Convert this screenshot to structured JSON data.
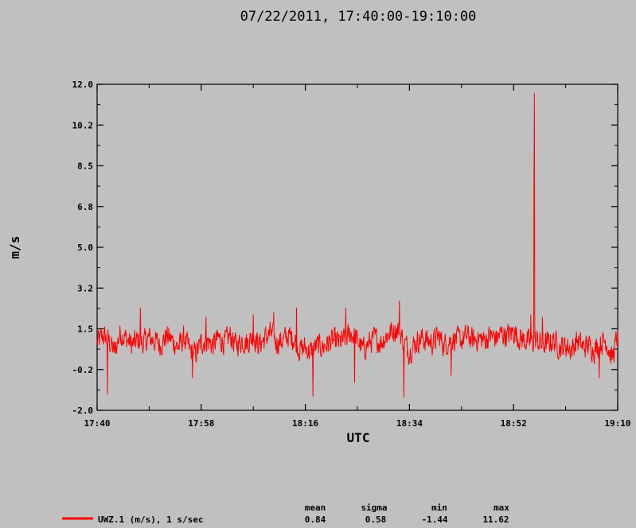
{
  "chart_data": {
    "type": "line",
    "title": "07/22/2011, 17:40:00-19:10:00",
    "xlabel": "UTC",
    "ylabel": "m/s",
    "x_ticks": [
      "17:40",
      "17:58",
      "18:16",
      "18:34",
      "18:52",
      "19:10"
    ],
    "x_range_minutes": [
      0,
      90
    ],
    "y_ticks": [
      "12.0",
      "10.2",
      "8.5",
      "6.8",
      "5.0",
      "3.2",
      "1.5",
      "-0.2",
      "-2.0"
    ],
    "ylim": [
      -2.0,
      12.0
    ],
    "grid": false,
    "series": [
      {
        "name": "UWZ.1 (m/s), 1 s/sec",
        "color": "#ff0000",
        "mean": 0.84,
        "sigma": 0.58,
        "min": -1.44,
        "max": 11.62,
        "anchors": [
          [
            0,
            0.9
          ],
          [
            1,
            1.2
          ],
          [
            2,
            1.0
          ],
          [
            3,
            0.5
          ],
          [
            4,
            1.3
          ],
          [
            5,
            1.1
          ],
          [
            6,
            0.8
          ],
          [
            7,
            1.0
          ],
          [
            8,
            0.9
          ],
          [
            9,
            1.1
          ],
          [
            10,
            1.0
          ],
          [
            11,
            0.8
          ],
          [
            12,
            1.2
          ],
          [
            13,
            1.0
          ],
          [
            14,
            0.7
          ],
          [
            15,
            1.1
          ],
          [
            16,
            0.6
          ],
          [
            17,
            0.4
          ],
          [
            18,
            0.9
          ],
          [
            19,
            1.0
          ],
          [
            20,
            0.8
          ],
          [
            21,
            1.1
          ],
          [
            22,
            0.9
          ],
          [
            23,
            1.2
          ],
          [
            24,
            0.8
          ],
          [
            25,
            1.0
          ],
          [
            26,
            0.9
          ],
          [
            27,
            1.2
          ],
          [
            28,
            0.8
          ],
          [
            29,
            1.1
          ],
          [
            30,
            1.3
          ],
          [
            31,
            0.9
          ],
          [
            32,
            1.0
          ],
          [
            33,
            1.2
          ],
          [
            34,
            1.1
          ],
          [
            35,
            0.6
          ],
          [
            36,
            0.7
          ],
          [
            37,
            0.5
          ],
          [
            38,
            0.8
          ],
          [
            39,
            0.7
          ],
          [
            40,
            0.9
          ],
          [
            41,
            1.0
          ],
          [
            42,
            0.9
          ],
          [
            43,
            1.1
          ],
          [
            44,
            1.3
          ],
          [
            45,
            1.0
          ],
          [
            46,
            0.6
          ],
          [
            47,
            0.9
          ],
          [
            48,
            1.1
          ],
          [
            49,
            0.9
          ],
          [
            50,
            1.2
          ],
          [
            51,
            1.4
          ],
          [
            52,
            1.5
          ],
          [
            53,
            1.0
          ],
          [
            54,
            0.5
          ],
          [
            55,
            0.9
          ],
          [
            56,
            1.1
          ],
          [
            57,
            1.0
          ],
          [
            58,
            0.9
          ],
          [
            59,
            1.2
          ],
          [
            60,
            0.8
          ],
          [
            61,
            1.0
          ],
          [
            62,
            1.1
          ],
          [
            63,
            1.0
          ],
          [
            64,
            1.2
          ],
          [
            65,
            1.0
          ],
          [
            66,
            1.1
          ],
          [
            67,
            1.0
          ],
          [
            68,
            1.2
          ],
          [
            69,
            1.1
          ],
          [
            70,
            1.3
          ],
          [
            71,
            1.2
          ],
          [
            72,
            1.4
          ],
          [
            73,
            1.1
          ],
          [
            74,
            1.0
          ],
          [
            75,
            0.9
          ],
          [
            76,
            1.0
          ],
          [
            77,
            0.8
          ],
          [
            78,
            0.9
          ],
          [
            79,
            1.0
          ],
          [
            80,
            0.7
          ],
          [
            81,
            0.8
          ],
          [
            82,
            0.6
          ],
          [
            83,
            1.0
          ],
          [
            84,
            0.7
          ],
          [
            85,
            0.8
          ],
          [
            86,
            0.6
          ],
          [
            87,
            0.9
          ],
          [
            88,
            1.0
          ],
          [
            89,
            0.2
          ],
          [
            90,
            1.2
          ]
        ],
        "spikes": [
          [
            1.8,
            -1.3
          ],
          [
            7.5,
            2.4
          ],
          [
            16.5,
            -0.6
          ],
          [
            18.8,
            2.0
          ],
          [
            27,
            2.1
          ],
          [
            30.5,
            2.2
          ],
          [
            34.5,
            2.4
          ],
          [
            37.3,
            -1.4
          ],
          [
            43,
            2.4
          ],
          [
            44.5,
            -0.8
          ],
          [
            52.3,
            2.7
          ],
          [
            53,
            -1.44
          ],
          [
            61.2,
            -0.5
          ],
          [
            62.4,
            1.6
          ],
          [
            75,
            2.1
          ],
          [
            77,
            2.0
          ],
          [
            86.8,
            -0.6
          ]
        ],
        "big_spike": {
          "x": 75.6,
          "y_low": 7.8,
          "y_peak": 11.62
        }
      }
    ]
  },
  "legend": {
    "label": "UWZ.1 (m/s), 1 s/sec",
    "stats_headers": [
      "mean",
      "sigma",
      "min",
      "max"
    ],
    "stats_values": [
      "0.84",
      "0.58",
      "-1.44",
      "11.62"
    ]
  }
}
